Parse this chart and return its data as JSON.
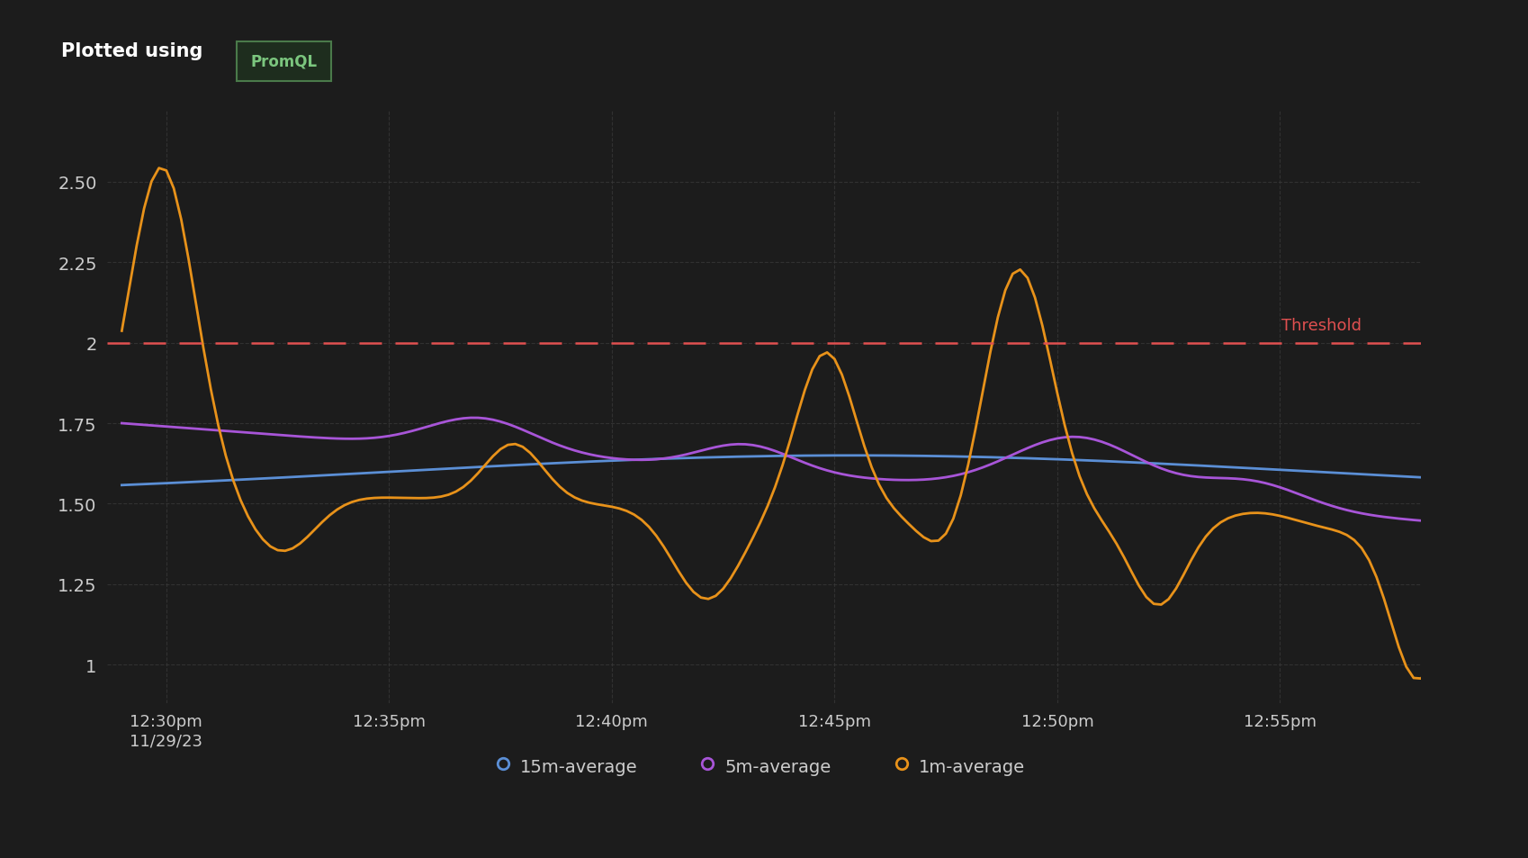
{
  "background_color": "#1c1c1c",
  "plot_bg_color": "#1c1c1c",
  "title_text": "Plotted using",
  "title_badge_text": "PromQL",
  "title_badge_color": "#7bc67e",
  "title_badge_bg": "#1e2d1e",
  "title_badge_border": "#4a7a4a",
  "threshold_value": 2.0,
  "threshold_color": "#e05050",
  "threshold_label": "Threshold",
  "ylim": [
    0.88,
    2.72
  ],
  "yticks": [
    1.0,
    1.25,
    1.5,
    1.75,
    2.0,
    2.25,
    2.5
  ],
  "ytick_labels": [
    "1",
    "1.25",
    "1.50",
    "1.75",
    "2",
    "2.25",
    "2.50"
  ],
  "grid_color": "#3a3a3a",
  "text_color": "#cccccc",
  "line_15m_color": "#5b8fd6",
  "line_5m_color": "#a855d8",
  "line_1m_color": "#e8921a",
  "x_tick_positions": [
    6,
    36,
    66,
    96,
    126,
    156
  ],
  "x_tick_labels": [
    "12:30pm\n11/29/23",
    "12:35pm",
    "12:40pm",
    "12:45pm",
    "12:50pm",
    "12:55pm"
  ],
  "num_points": 180,
  "legend_entries": [
    "15m-average",
    "5m-average",
    "1m-average"
  ],
  "legend_colors": [
    "#5b8fd6",
    "#a855d8",
    "#e8921a"
  ]
}
